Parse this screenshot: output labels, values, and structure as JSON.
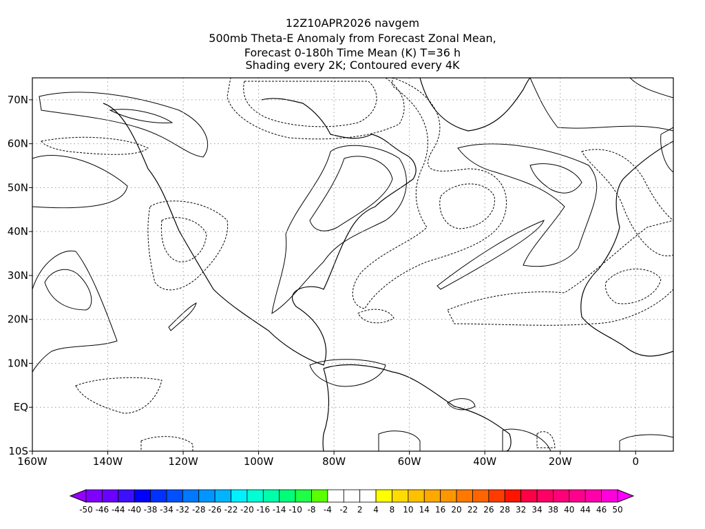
{
  "title": {
    "line1": "12Z10APR2026 navgem",
    "line2": "500mb Theta-E Anomaly from Forecast Zonal Mean,",
    "line3": "Forecast 0-180h Time Mean (K) T=36 h",
    "line4": "Shading every 2K; Contoured every 4K"
  },
  "map": {
    "lon_range": [
      -160,
      10
    ],
    "lat_range": [
      -10,
      75
    ],
    "x_ticks": [
      "160W",
      "140W",
      "120W",
      "100W",
      "80W",
      "60W",
      "40W",
      "20W",
      "0"
    ],
    "y_ticks": [
      "70N",
      "60N",
      "50N",
      "40N",
      "30N",
      "20N",
      "10N",
      "EQ",
      "10S"
    ],
    "colors": {
      "green": "#5aff00",
      "teal": "#00ffaa",
      "yellow": "#ffff00",
      "gold": "#ffdc00",
      "orange": "#ffa800"
    }
  },
  "colorbar": {
    "labels": [
      "-50",
      "-46",
      "-44",
      "-40",
      "-38",
      "-34",
      "-32",
      "-28",
      "-26",
      "-22",
      "-20",
      "-16",
      "-14",
      "-10",
      "-8",
      "-4",
      "-2",
      "2",
      "4",
      "8",
      "10",
      "14",
      "16",
      "20",
      "22",
      "26",
      "28",
      "32",
      "34",
      "38",
      "40",
      "44",
      "46",
      "50"
    ],
    "low_arrow_color": "#9600ff",
    "high_arrow_color": "#ff00ff",
    "colors": [
      "#7f00ff",
      "#6a00ff",
      "#3c10ff",
      "#0000ff",
      "#0032ff",
      "#0050ff",
      "#0078ff",
      "#0096ff",
      "#00b4ff",
      "#00f0ff",
      "#00ffd2",
      "#00ffaa",
      "#00ff78",
      "#1eff46",
      "#5aff00",
      "#ffffff",
      "#ffffff",
      "#ffffff",
      "#ffff00",
      "#ffdc00",
      "#ffc000",
      "#ffa800",
      "#ff9600",
      "#ff7800",
      "#ff6400",
      "#ff3c00",
      "#ff1400",
      "#ff0046",
      "#ff0064",
      "#ff0078",
      "#ff008c",
      "#ff00aa",
      "#ff00dc"
    ]
  }
}
